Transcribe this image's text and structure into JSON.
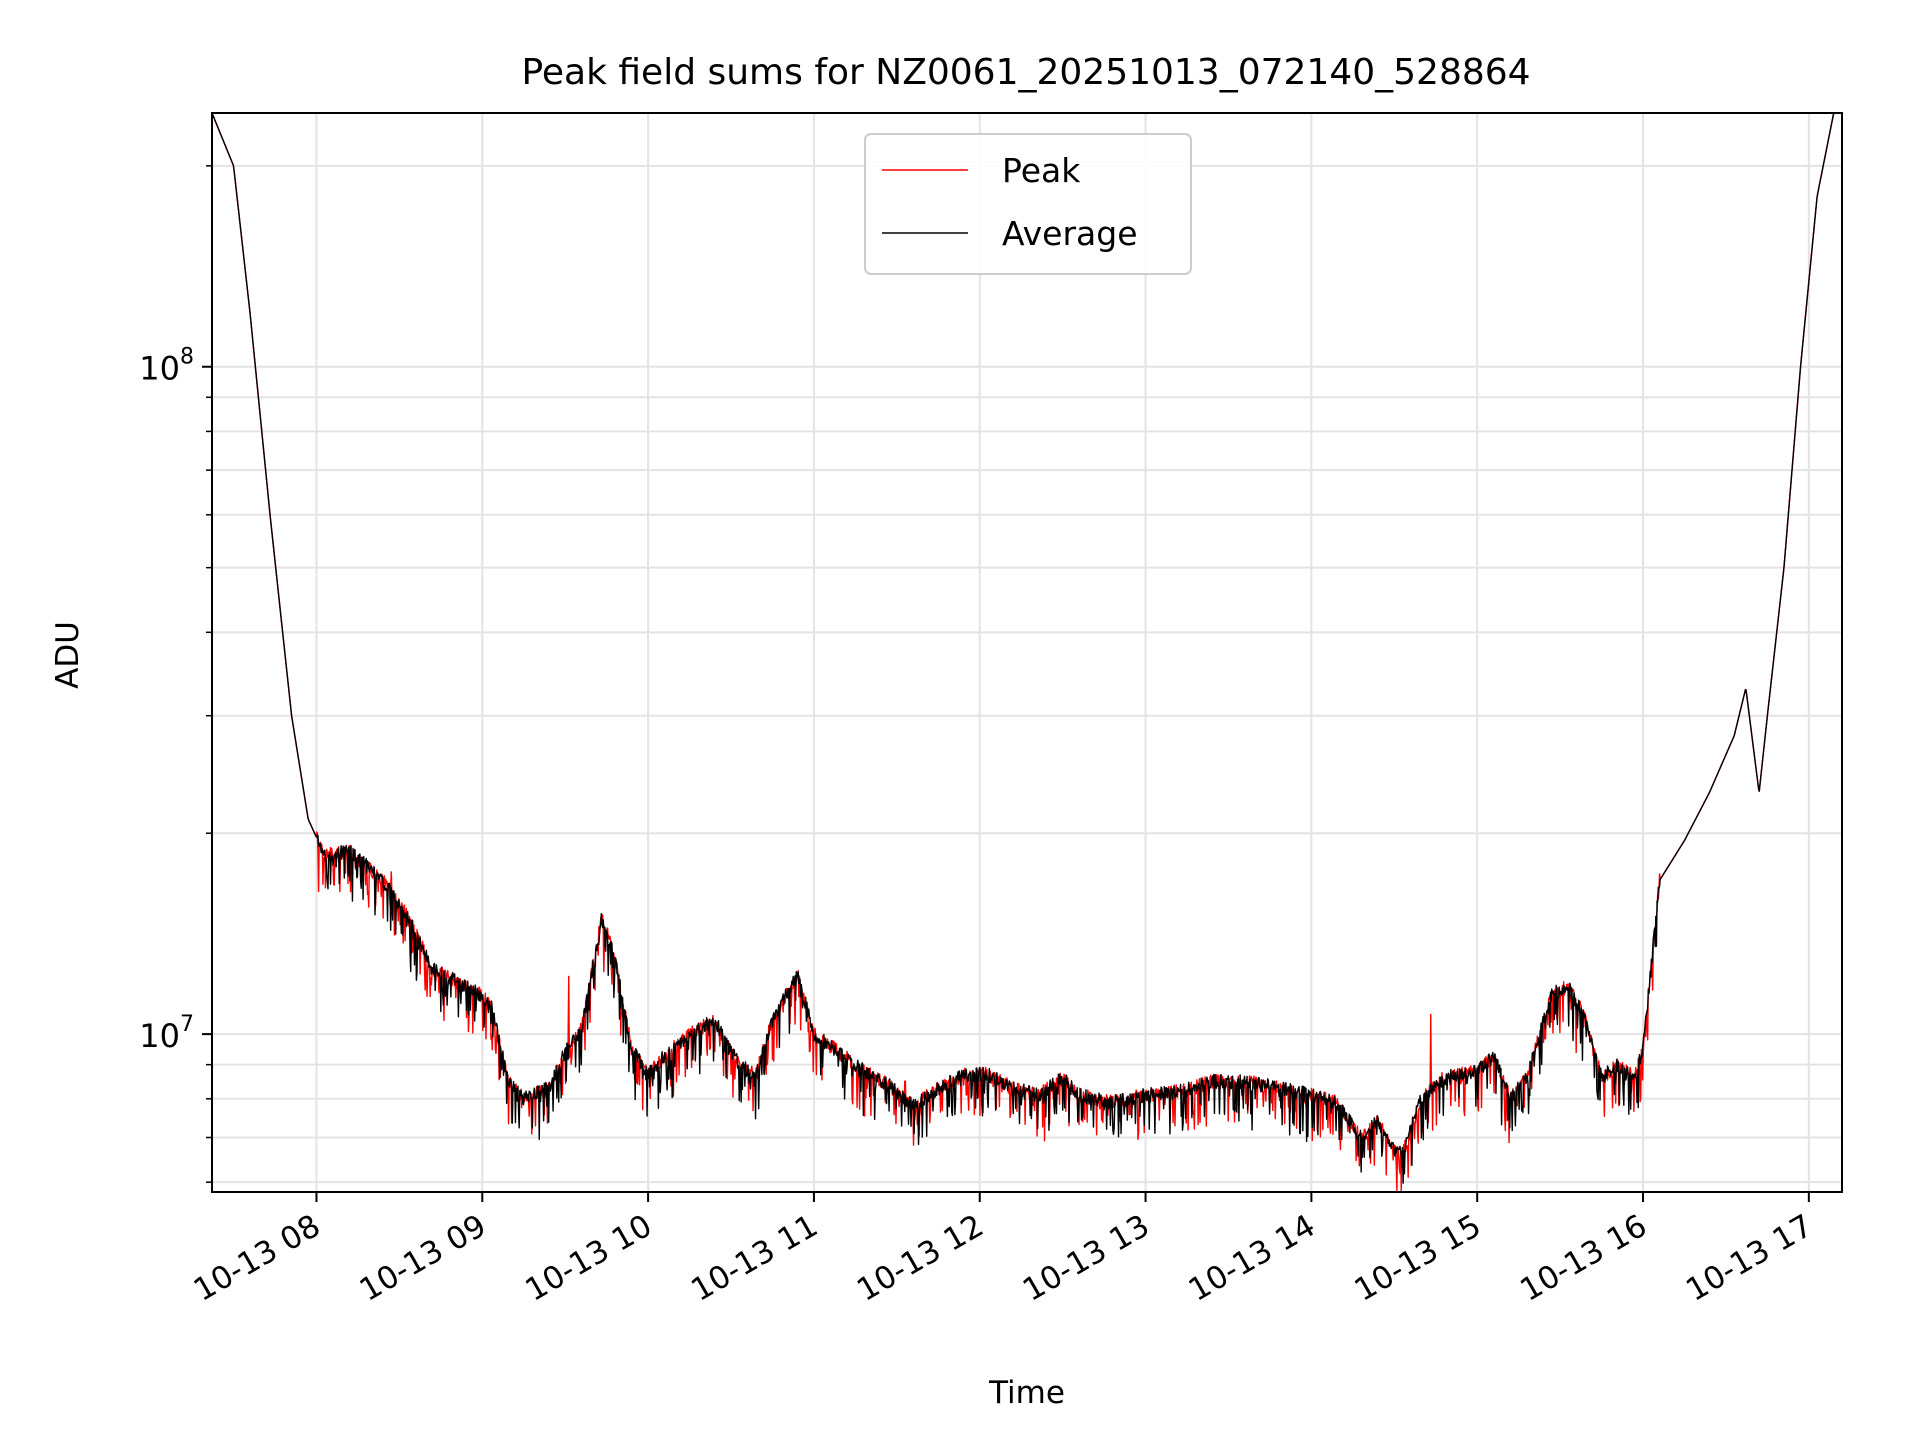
{
  "chart_data": {
    "type": "line",
    "title": "Peak field sums for NZ0061_20251013_072140_528864",
    "xlabel": "Time",
    "ylabel": "ADU",
    "yscale": "log",
    "ylim": [
      5800000,
      240000000
    ],
    "xlim_hours": [
      7.37,
      17.2
    ],
    "grid": true,
    "legend_position": "upper-center",
    "x_tick_labels": [
      "10-13 08",
      "10-13 09",
      "10-13 10",
      "10-13 11",
      "10-13 12",
      "10-13 13",
      "10-13 14",
      "10-13 15",
      "10-13 16",
      "10-13 17"
    ],
    "x_tick_hours": [
      8,
      9,
      10,
      11,
      12,
      13,
      14,
      15,
      16,
      17
    ],
    "y_tick_labels": [
      {
        "base": "10",
        "exp": "7"
      },
      {
        "base": "10",
        "exp": "8"
      }
    ],
    "y_tick_values": [
      10000000,
      100000000
    ],
    "series": [
      {
        "name": "Peak",
        "color": "#ff0000",
        "noise_seed": 7,
        "spikes": [
          [
            8.45,
            17500000
          ],
          [
            9.52,
            12200000
          ],
          [
            10.85,
            11300000
          ],
          [
            11.55,
            8500000
          ],
          [
            14.72,
            10700000
          ],
          [
            15.62,
            11200000
          ]
        ]
      },
      {
        "name": "Average",
        "color": "#000000",
        "noise_seed": 3,
        "spikes": []
      }
    ],
    "trend": [
      [
        7.37,
        240000000
      ],
      [
        7.5,
        200000000
      ],
      [
        7.6,
        120000000
      ],
      [
        7.72,
        60000000
      ],
      [
        7.85,
        30000000
      ],
      [
        7.95,
        21000000
      ],
      [
        8.05,
        18500000
      ],
      [
        8.2,
        18800000
      ],
      [
        8.4,
        17000000
      ],
      [
        8.55,
        15000000
      ],
      [
        8.7,
        12500000
      ],
      [
        8.9,
        11800000
      ],
      [
        9.05,
        11200000
      ],
      [
        9.15,
        8600000
      ],
      [
        9.25,
        8000000
      ],
      [
        9.4,
        8300000
      ],
      [
        9.5,
        9400000
      ],
      [
        9.6,
        10200000
      ],
      [
        9.72,
        15000000
      ],
      [
        9.8,
        13000000
      ],
      [
        9.9,
        9500000
      ],
      [
        10.0,
        8700000
      ],
      [
        10.1,
        9300000
      ],
      [
        10.25,
        10000000
      ],
      [
        10.4,
        10500000
      ],
      [
        10.55,
        9000000
      ],
      [
        10.65,
        8700000
      ],
      [
        10.75,
        10500000
      ],
      [
        10.9,
        12300000
      ],
      [
        11.0,
        10000000
      ],
      [
        11.15,
        9400000
      ],
      [
        11.3,
        8800000
      ],
      [
        11.45,
        8400000
      ],
      [
        11.6,
        7800000
      ],
      [
        11.75,
        8300000
      ],
      [
        11.9,
        8700000
      ],
      [
        12.05,
        8700000
      ],
      [
        12.2,
        8300000
      ],
      [
        12.35,
        8100000
      ],
      [
        12.5,
        8600000
      ],
      [
        12.6,
        8100000
      ],
      [
        12.8,
        7900000
      ],
      [
        13.0,
        8100000
      ],
      [
        13.2,
        8200000
      ],
      [
        13.4,
        8500000
      ],
      [
        13.6,
        8500000
      ],
      [
        13.8,
        8300000
      ],
      [
        14.0,
        8100000
      ],
      [
        14.15,
        7900000
      ],
      [
        14.3,
        7000000
      ],
      [
        14.4,
        7400000
      ],
      [
        14.5,
        6700000
      ],
      [
        14.55,
        6600000
      ],
      [
        14.65,
        7900000
      ],
      [
        14.8,
        8600000
      ],
      [
        15.0,
        8800000
      ],
      [
        15.1,
        9300000
      ],
      [
        15.2,
        8000000
      ],
      [
        15.3,
        8600000
      ],
      [
        15.45,
        11500000
      ],
      [
        15.55,
        11800000
      ],
      [
        15.65,
        10500000
      ],
      [
        15.75,
        8600000
      ],
      [
        15.85,
        9000000
      ],
      [
        15.95,
        8600000
      ],
      [
        16.0,
        9500000
      ],
      [
        16.1,
        17000000
      ],
      [
        16.25,
        19500000
      ],
      [
        16.4,
        23000000
      ],
      [
        16.55,
        28000000
      ],
      [
        16.62,
        33000000
      ],
      [
        16.7,
        23000000
      ],
      [
        16.75,
        30000000
      ],
      [
        16.85,
        50000000
      ],
      [
        16.95,
        100000000
      ],
      [
        17.05,
        180000000
      ],
      [
        17.15,
        240000000
      ],
      [
        17.2,
        240000000
      ]
    ]
  }
}
